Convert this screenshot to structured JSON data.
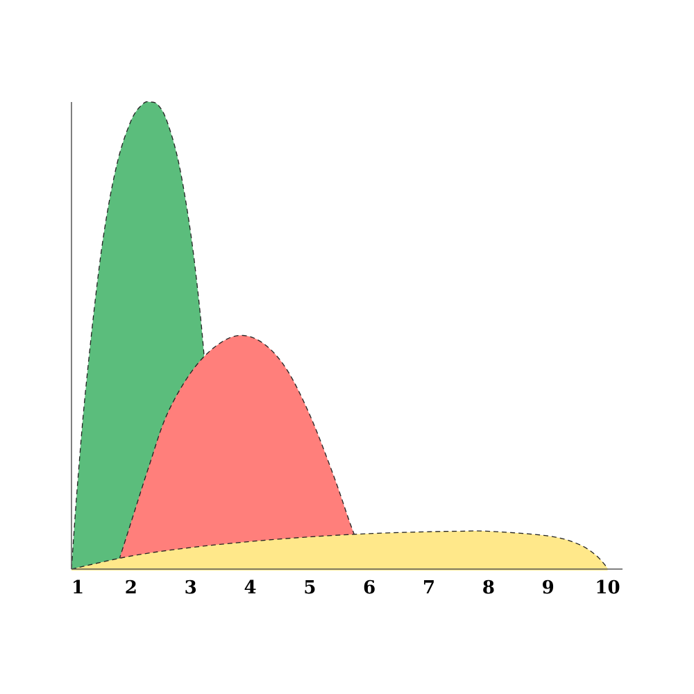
{
  "chart_data": {
    "type": "area",
    "title": "",
    "xlabel": "",
    "ylabel": "",
    "xlim": [
      1,
      10.25
    ],
    "ylim": [
      0,
      100
    ],
    "x_ticks": [
      "1",
      "2",
      "3",
      "4",
      "5",
      "6",
      "7",
      "8",
      "9",
      "10"
    ],
    "grid": false,
    "legend": "none",
    "series": [
      {
        "color": "#5bbd7c",
        "points": [
          [
            1.0,
            0
          ],
          [
            1.1,
            18
          ],
          [
            1.25,
            40
          ],
          [
            1.5,
            68
          ],
          [
            1.75,
            86
          ],
          [
            2.0,
            96
          ],
          [
            2.2,
            99.6
          ],
          [
            2.32,
            100
          ],
          [
            2.45,
            99.4
          ],
          [
            2.6,
            96
          ],
          [
            2.8,
            87
          ],
          [
            3.0,
            72
          ],
          [
            3.15,
            56
          ],
          [
            3.25,
            42
          ],
          [
            3.3,
            32
          ]
        ]
      },
      {
        "color": "#ff7f7b",
        "points": [
          [
            1.8,
            2
          ],
          [
            2.0,
            10
          ],
          [
            2.3,
            22
          ],
          [
            2.6,
            33
          ],
          [
            3.0,
            42
          ],
          [
            3.4,
            47.5
          ],
          [
            3.8,
            50
          ],
          [
            4.2,
            48.5
          ],
          [
            4.6,
            43
          ],
          [
            5.0,
            33
          ],
          [
            5.4,
            20
          ],
          [
            5.7,
            9
          ],
          [
            5.95,
            1
          ]
        ]
      },
      {
        "color": "#ffe88a",
        "points": [
          [
            1.0,
            0
          ],
          [
            2.0,
            2.8
          ],
          [
            3.0,
            4.6
          ],
          [
            4.0,
            5.9
          ],
          [
            5.0,
            6.9
          ],
          [
            6.0,
            7.6
          ],
          [
            7.0,
            8.0
          ],
          [
            7.5,
            8.1
          ],
          [
            8.0,
            8.1
          ],
          [
            9.0,
            7.1
          ],
          [
            9.5,
            5.4
          ],
          [
            9.8,
            3.0
          ],
          [
            10.0,
            0.2
          ]
        ]
      }
    ]
  }
}
